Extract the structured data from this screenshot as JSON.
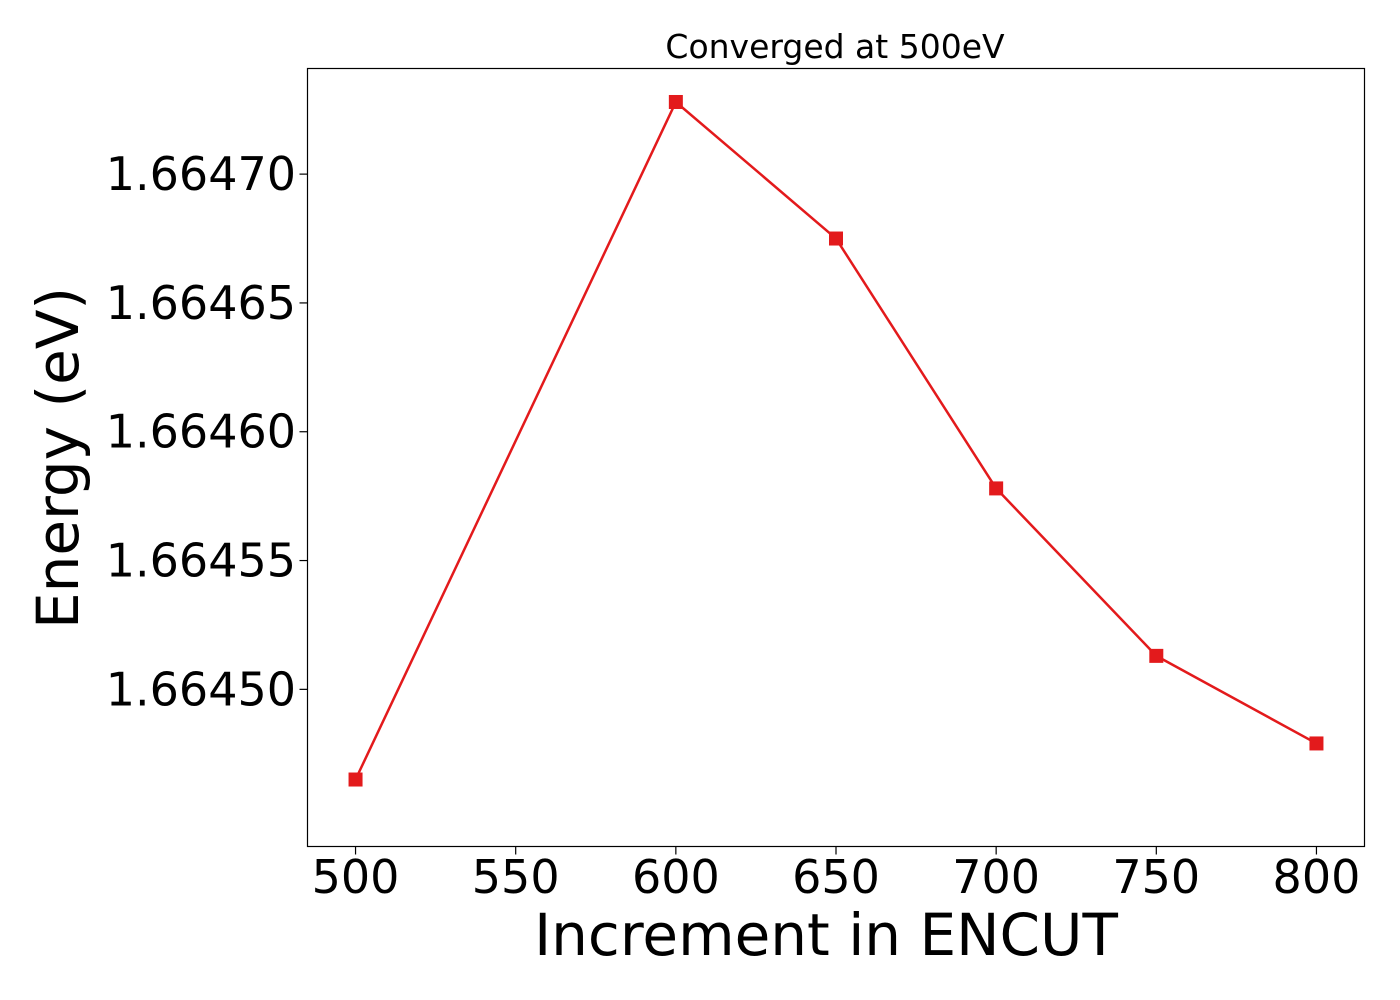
{
  "chart_data": {
    "type": "line",
    "title": "Converged at 500eV",
    "xlabel": "Increment in ENCUT",
    "ylabel": "Energy (eV)",
    "x": [
      500,
      600,
      650,
      700,
      750,
      800
    ],
    "series": [
      {
        "values": [
          1.664465,
          1.664728,
          1.664675,
          1.664578,
          1.664513,
          1.664479
        ],
        "color": "#e31a1c",
        "marker": "square"
      }
    ],
    "xlim": [
      485,
      815
    ],
    "ylim": [
      1.664439,
      1.664741
    ],
    "xticks": [
      500,
      550,
      600,
      650,
      700,
      750,
      800
    ],
    "xtick_labels": [
      "500",
      "550",
      "600",
      "650",
      "700",
      "750",
      "800"
    ],
    "yticks": [
      1.6645,
      1.66455,
      1.6646,
      1.66465,
      1.6647
    ],
    "ytick_labels": [
      "1.66450",
      "1.66455",
      "1.66460",
      "1.66465",
      "1.66470"
    ],
    "grid": false,
    "legend": "none"
  }
}
